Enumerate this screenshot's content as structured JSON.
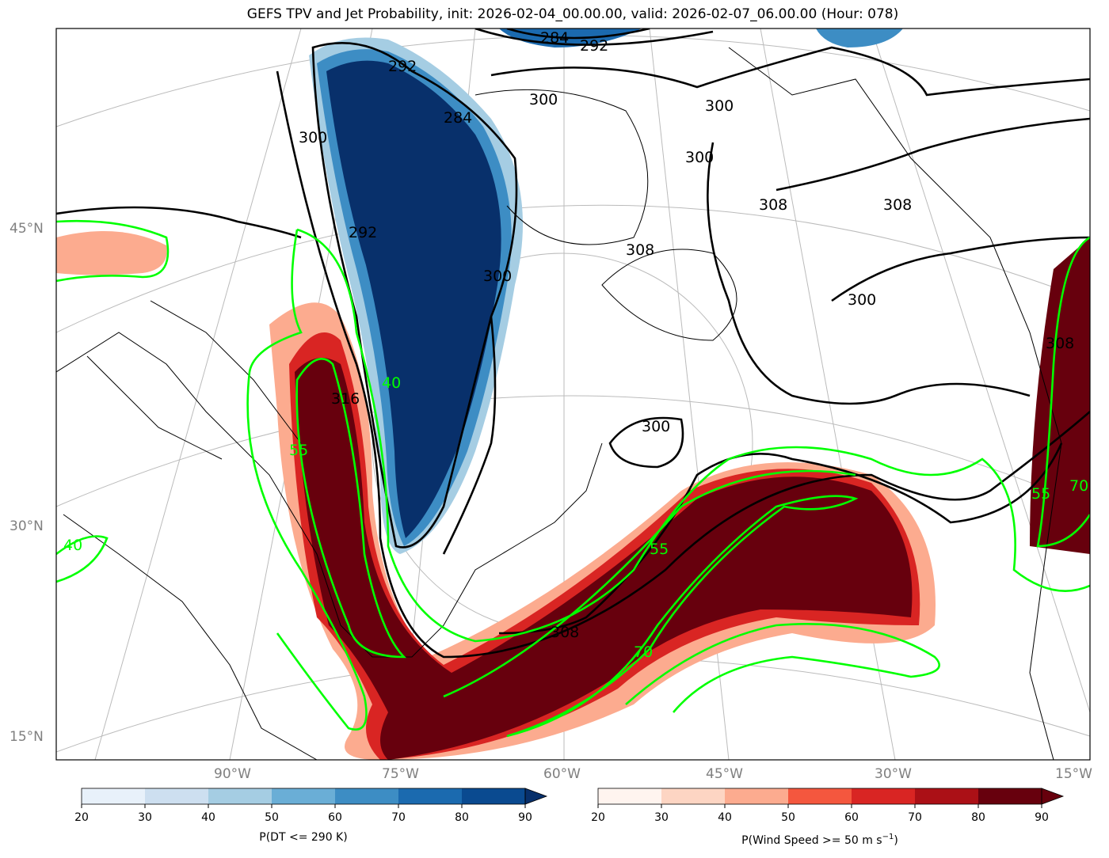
{
  "title": "GEFS TPV and Jet Probability, init: 2026-02-04_00.00.00, valid: 2026-02-07_06.00.00 (Hour: 078)",
  "axes": {
    "lat_labels": [
      "45°N",
      "30°N",
      "15°N"
    ],
    "lon_labels": [
      "90°W",
      "75°W",
      "60°W",
      "45°W",
      "30°W",
      "15°W"
    ]
  },
  "contours": {
    "theta_labels": [
      "284",
      "292",
      "292",
      "300",
      "284",
      "300",
      "292",
      "300",
      "300",
      "300",
      "308",
      "308",
      "308",
      "300",
      "300",
      "316",
      "308",
      "308"
    ],
    "jet_labels": [
      "40",
      "55",
      "55",
      "70",
      "70",
      "55",
      "40"
    ]
  },
  "colorbars": [
    {
      "label": "P(DT <= 290 K)",
      "ticks": [
        "20",
        "30",
        "40",
        "50",
        "60",
        "70",
        "80",
        "90"
      ],
      "colors": [
        "#e8f1fa",
        "#cddff0",
        "#a5cde3",
        "#6aaed6",
        "#3d8dc4",
        "#1b6aaf",
        "#0a4a90"
      ],
      "extend_color": "#08306b"
    },
    {
      "label_main": "P(Wind Speed >= 50 m s",
      "label_sup": "−1",
      "label_end": ")",
      "ticks": [
        "20",
        "30",
        "40",
        "50",
        "60",
        "70",
        "80",
        "90"
      ],
      "colors": [
        "#fff4ef",
        "#fdd5c3",
        "#fcab8f",
        "#f4573e",
        "#d92523",
        "#ab1016",
        "#67000d"
      ],
      "extend_color": "#67000d"
    }
  ]
}
